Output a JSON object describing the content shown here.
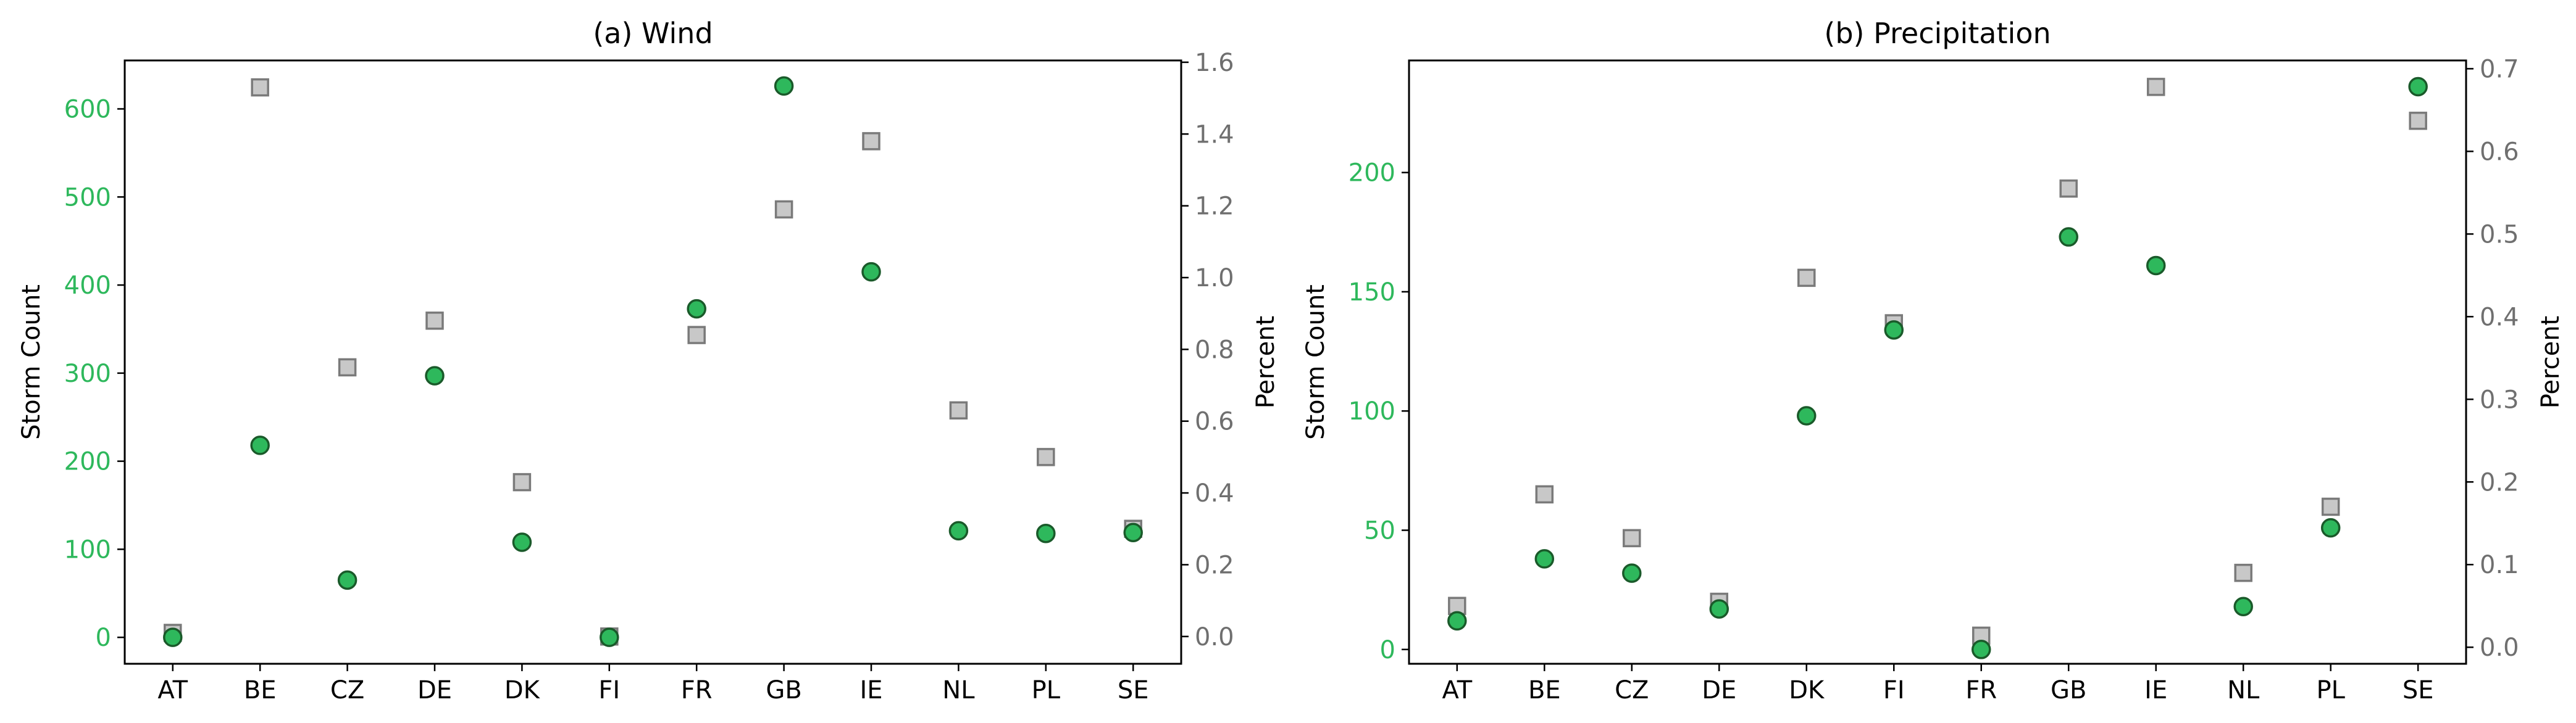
{
  "chart_data": [
    {
      "type": "scatter",
      "title": "(a) Wind",
      "categories": [
        "AT",
        "BE",
        "CZ",
        "DE",
        "DK",
        "FI",
        "FR",
        "GB",
        "IE",
        "NL",
        "PL",
        "SE"
      ],
      "ylabel": "Storm Count",
      "y2label": "Percent",
      "ylim": [
        -30,
        655
      ],
      "y2lim": [
        -0.076,
        1.605
      ],
      "yticks": [
        "0",
        "100",
        "200",
        "300",
        "400",
        "500",
        "600"
      ],
      "y2ticks": [
        "0.0",
        "0.2",
        "0.4",
        "0.6",
        "0.8",
        "1.0",
        "1.2",
        "1.4",
        "1.6"
      ],
      "series": [
        {
          "axis": "left",
          "marker": "circle",
          "color": "#2eb85c",
          "values": [
            0,
            218,
            65,
            297,
            108,
            0,
            373,
            626,
            415,
            121,
            118,
            119
          ]
        },
        {
          "axis": "right",
          "marker": "square",
          "color": "#c8c8c8",
          "values": [
            0.01,
            1.53,
            0.75,
            0.88,
            0.43,
            0.0,
            0.84,
            1.19,
            1.38,
            0.63,
            0.5,
            0.3
          ]
        }
      ]
    },
    {
      "type": "scatter",
      "title": "(b) Precipitation",
      "categories": [
        "AT",
        "BE",
        "CZ",
        "DE",
        "DK",
        "FI",
        "FR",
        "GB",
        "IE",
        "NL",
        "PL",
        "SE"
      ],
      "ylabel": "Storm Count",
      "y2label": "Percent",
      "ylim": [
        -6,
        247
      ],
      "y2lim": [
        -0.02,
        0.71
      ],
      "yticks": [
        "0",
        "50",
        "100",
        "150",
        "200"
      ],
      "y2ticks": [
        "0.0",
        "0.1",
        "0.2",
        "0.3",
        "0.4",
        "0.5",
        "0.6",
        "0.7"
      ],
      "series": [
        {
          "axis": "left",
          "marker": "circle",
          "color": "#2eb85c",
          "values": [
            12,
            38,
            32,
            17,
            98,
            134,
            0,
            173,
            161,
            18,
            51,
            236
          ]
        },
        {
          "axis": "right",
          "marker": "square",
          "color": "#c8c8c8",
          "values": [
            0.05,
            0.185,
            0.132,
            0.055,
            0.447,
            0.392,
            0.014,
            0.555,
            0.678,
            0.09,
            0.17,
            0.637
          ]
        }
      ]
    }
  ],
  "colors": {
    "left_axis": "#2eb85c",
    "right_axis": "#6f6f6f",
    "square_edge": "#7a7a7a",
    "circle_edge": "#1a5a2a"
  }
}
